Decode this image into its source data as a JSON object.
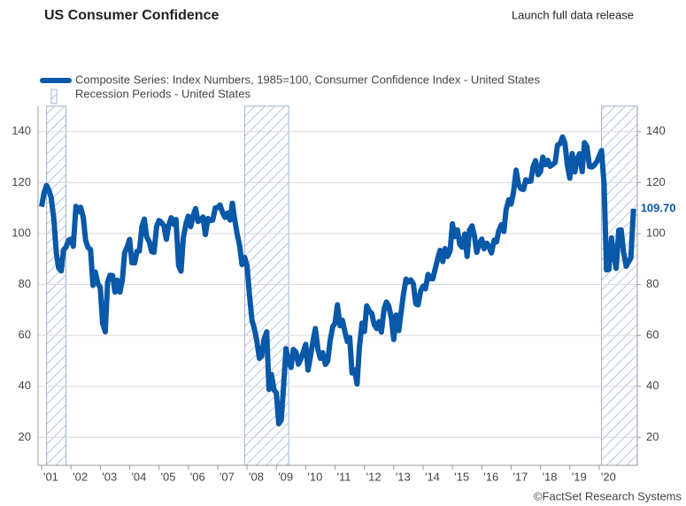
{
  "chart_data": {
    "type": "line",
    "title": "US Consumer Confidence",
    "link": "Launch full data release",
    "source": "©FactSet Research Systems",
    "series": [
      {
        "name": "Composite Series: Index Numbers, 1985=100, Consumer Confidence Index - United States",
        "color": "#0a58a8",
        "x": [
          2001,
          2001.08,
          2001.17,
          2001.25,
          2001.33,
          2001.42,
          2001.5,
          2001.58,
          2001.67,
          2001.75,
          2001.83,
          2001.92,
          2002,
          2002.08,
          2002.17,
          2002.25,
          2002.33,
          2002.42,
          2002.5,
          2002.58,
          2002.67,
          2002.75,
          2002.83,
          2002.92,
          2003,
          2003.08,
          2003.17,
          2003.25,
          2003.33,
          2003.42,
          2003.5,
          2003.58,
          2003.67,
          2003.75,
          2003.83,
          2003.92,
          2004,
          2004.08,
          2004.17,
          2004.25,
          2004.33,
          2004.42,
          2004.5,
          2004.58,
          2004.67,
          2004.75,
          2004.83,
          2004.92,
          2005,
          2005.08,
          2005.17,
          2005.25,
          2005.33,
          2005.42,
          2005.5,
          2005.58,
          2005.67,
          2005.75,
          2005.83,
          2005.92,
          2006,
          2006.08,
          2006.17,
          2006.25,
          2006.33,
          2006.42,
          2006.5,
          2006.58,
          2006.67,
          2006.75,
          2006.83,
          2006.92,
          2007,
          2007.08,
          2007.17,
          2007.25,
          2007.33,
          2007.42,
          2007.5,
          2007.58,
          2007.67,
          2007.75,
          2007.83,
          2007.92,
          2008,
          2008.08,
          2008.17,
          2008.25,
          2008.33,
          2008.42,
          2008.5,
          2008.58,
          2008.67,
          2008.75,
          2008.83,
          2008.92,
          2009,
          2009.08,
          2009.17,
          2009.25,
          2009.33,
          2009.42,
          2009.5,
          2009.58,
          2009.67,
          2009.75,
          2009.83,
          2009.92,
          2010,
          2010.08,
          2010.17,
          2010.25,
          2010.33,
          2010.42,
          2010.5,
          2010.58,
          2010.67,
          2010.75,
          2010.83,
          2010.92,
          2011,
          2011.08,
          2011.17,
          2011.25,
          2011.33,
          2011.42,
          2011.5,
          2011.58,
          2011.67,
          2011.75,
          2011.83,
          2011.92,
          2012,
          2012.08,
          2012.17,
          2012.25,
          2012.33,
          2012.42,
          2012.5,
          2012.58,
          2012.67,
          2012.75,
          2012.83,
          2012.92,
          2013,
          2013.08,
          2013.17,
          2013.25,
          2013.33,
          2013.42,
          2013.5,
          2013.58,
          2013.67,
          2013.75,
          2013.83,
          2013.92,
          2014,
          2014.08,
          2014.17,
          2014.25,
          2014.33,
          2014.42,
          2014.5,
          2014.58,
          2014.67,
          2014.75,
          2014.83,
          2014.92,
          2015,
          2015.08,
          2015.17,
          2015.25,
          2015.33,
          2015.42,
          2015.5,
          2015.58,
          2015.67,
          2015.75,
          2015.83,
          2015.92,
          2016,
          2016.08,
          2016.17,
          2016.25,
          2016.33,
          2016.42,
          2016.5,
          2016.58,
          2016.67,
          2016.75,
          2016.83,
          2016.92,
          2017,
          2017.08,
          2017.17,
          2017.25,
          2017.33,
          2017.42,
          2017.5,
          2017.58,
          2017.67,
          2017.75,
          2017.83,
          2017.92,
          2018,
          2018.08,
          2018.17,
          2018.25,
          2018.33,
          2018.42,
          2018.5,
          2018.58,
          2018.67,
          2018.75,
          2018.83,
          2018.92,
          2019,
          2019.08,
          2019.17,
          2019.25,
          2019.33,
          2019.42,
          2019.5,
          2019.58,
          2019.67,
          2019.75,
          2019.83,
          2019.92,
          2020,
          2020.08,
          2020.17,
          2020.25,
          2020.33,
          2020.42,
          2020.5,
          2020.58,
          2020.67,
          2020.75,
          2020.83,
          2020.92,
          2021,
          2021.08,
          2021.17
        ],
        "values": [
          110.5,
          115.7,
          118.9,
          116.9,
          113.9,
          105.5,
          92.3,
          86.5,
          85.3,
          93.6,
          94.6,
          97.3,
          97.8,
          95.0,
          110.7,
          108.5,
          110.3,
          106.3,
          97.4,
          94.5,
          93.7,
          79.6,
          84.9,
          80.3,
          78.8,
          64.8,
          61.4,
          81.0,
          83.6,
          83.5,
          77.0,
          81.7,
          77.0,
          81.7,
          92.5,
          94.8,
          97.7,
          88.5,
          88.5,
          93.0,
          93.1,
          102.8,
          105.7,
          98.7,
          96.7,
          92.9,
          92.6,
          102.7,
          105.1,
          104.4,
          103.0,
          97.7,
          103.1,
          106.2,
          103.6,
          105.5,
          87.5,
          85.2,
          98.3,
          103.8,
          106.8,
          102.7,
          107.2,
          109.8,
          104.7,
          105.4,
          106.5,
          99.6,
          105.9,
          105.1,
          105.3,
          110.0,
          110.2,
          111.2,
          108.2,
          106.3,
          108.0,
          105.3,
          111.9,
          105.6,
          99.5,
          95.2,
          87.8,
          90.6,
          87.3,
          76.4,
          65.9,
          62.8,
          58.1,
          51.0,
          51.9,
          58.5,
          61.4,
          38.8,
          44.7,
          38.6,
          37.4,
          25.3,
          26.9,
          40.8,
          54.8,
          49.3,
          47.4,
          54.5,
          53.4,
          48.7,
          50.6,
          53.6,
          56.5,
          46.4,
          52.3,
          57.9,
          62.7,
          54.3,
          51.0,
          53.2,
          48.6,
          49.9,
          57.8,
          63.4,
          64.8,
          72.0,
          63.8,
          66.0,
          61.7,
          57.6,
          59.2,
          45.2,
          46.4,
          40.9,
          55.2,
          64.8,
          61.5,
          71.6,
          69.5,
          68.7,
          64.4,
          62.7,
          65.4,
          61.3,
          70.3,
          73.1,
          71.5,
          66.7,
          58.4,
          68.0,
          61.9,
          69.0,
          76.2,
          82.1,
          81.0,
          81.8,
          80.2,
          72.4,
          72.0,
          77.5,
          79.4,
          78.3,
          83.9,
          82.3,
          82.2,
          86.4,
          90.3,
          93.4,
          89.0,
          94.1,
          91.0,
          93.1,
          103.8,
          98.8,
          101.4,
          95.8,
          94.6,
          99.8,
          91.0,
          101.3,
          103.0,
          99.1,
          92.6,
          96.3,
          97.8,
          94.0,
          96.2,
          94.7,
          92.4,
          97.4,
          96.7,
          101.1,
          103.5,
          100.8,
          109.4,
          113.3,
          111.6,
          116.1,
          124.9,
          119.4,
          117.6,
          117.3,
          121.1,
          120.4,
          120.6,
          126.2,
          128.6,
          123.1,
          124.3,
          130.0,
          127.0,
          128.7,
          126.4,
          127.1,
          127.9,
          134.7,
          135.3,
          137.9,
          135.7,
          126.6,
          121.7,
          131.4,
          124.2,
          129.2,
          131.3,
          124.3,
          135.7,
          134.2,
          126.3,
          126.1,
          126.8,
          128.2,
          130.4,
          132.6,
          118.8,
          85.7,
          85.9,
          98.3,
          91.7,
          86.3,
          101.3,
          101.4,
          92.9,
          87.1,
          88.9,
          90.4,
          109.7
        ]
      }
    ],
    "end_label": "109.70",
    "recession_name": "Recession Periods - United States",
    "recessions": [
      [
        2001.17,
        2001.83
      ],
      [
        2007.92,
        2009.42
      ],
      [
        2020.08,
        2021.3
      ]
    ],
    "xlim": [
      2000.88,
      2021.3
    ],
    "xticks": [
      {
        "value": 2001,
        "label": "'01"
      },
      {
        "value": 2002,
        "label": "'02"
      },
      {
        "value": 2003,
        "label": "'03"
      },
      {
        "value": 2004,
        "label": "'04"
      },
      {
        "value": 2005,
        "label": "'05"
      },
      {
        "value": 2006,
        "label": "'06"
      },
      {
        "value": 2007,
        "label": "'07"
      },
      {
        "value": 2008,
        "label": "'08"
      },
      {
        "value": 2009,
        "label": "'09"
      },
      {
        "value": 2010,
        "label": "'10"
      },
      {
        "value": 2011,
        "label": "'11"
      },
      {
        "value": 2012,
        "label": "'12"
      },
      {
        "value": 2013,
        "label": "'13"
      },
      {
        "value": 2014,
        "label": "'14"
      },
      {
        "value": 2015,
        "label": "'15"
      },
      {
        "value": 2016,
        "label": "'16"
      },
      {
        "value": 2017,
        "label": "'17"
      },
      {
        "value": 2018,
        "label": "'18"
      },
      {
        "value": 2019,
        "label": "'19"
      },
      {
        "value": 2020,
        "label": "'20"
      }
    ],
    "ylim": [
      9,
      150
    ],
    "yticks": [
      20,
      40,
      60,
      80,
      100,
      120,
      140
    ],
    "y2lim": [
      9,
      150
    ],
    "y2ticks": [
      20,
      40,
      60,
      80,
      100,
      120,
      140
    ],
    "grid": true
  }
}
